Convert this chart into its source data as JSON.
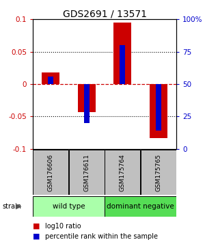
{
  "title": "GDS2691 / 13571",
  "samples": [
    "GSM176606",
    "GSM176611",
    "GSM175764",
    "GSM175765"
  ],
  "log10_ratio": [
    0.018,
    -0.043,
    0.095,
    -0.083
  ],
  "percentile_rank": [
    0.56,
    0.2,
    0.8,
    0.14
  ],
  "ylim": [
    -0.1,
    0.1
  ],
  "yticks_left": [
    -0.1,
    -0.05,
    0,
    0.05,
    0.1
  ],
  "yticks_right": [
    0,
    25,
    50,
    75,
    100
  ],
  "red_color": "#cc0000",
  "blue_color": "#0000cc",
  "red_bar_width": 0.5,
  "blue_bar_width": 0.15,
  "groups": [
    {
      "label": "wild type",
      "samples": [
        0,
        1
      ],
      "color": "#aaffaa"
    },
    {
      "label": "dominant negative",
      "samples": [
        2,
        3
      ],
      "color": "#55dd55"
    }
  ],
  "strain_label": "strain",
  "legend_red": "log10 ratio",
  "legend_blue": "percentile rank within the sample",
  "title_fontsize": 10,
  "tick_fontsize": 7.5,
  "sample_fontsize": 6.5,
  "group_fontsize": 7.5,
  "legend_fontsize": 7
}
